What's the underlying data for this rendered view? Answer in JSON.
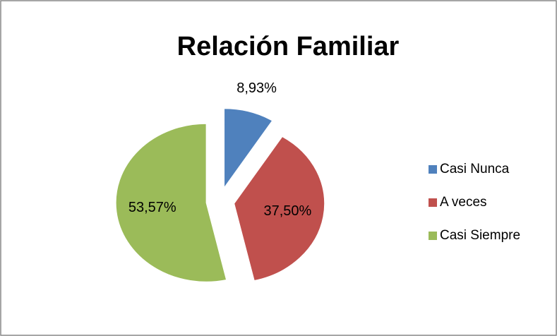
{
  "chart_data": {
    "type": "pie",
    "title": "Relación Familiar",
    "categories": [
      "Casi Nunca",
      "A veces",
      "Casi Siempre"
    ],
    "values": [
      8.93,
      37.5,
      53.57
    ],
    "value_labels": [
      "8,93%",
      "37,50%",
      "53,57%"
    ],
    "colors": [
      "#4f81bd",
      "#c0504d",
      "#9bbb59"
    ],
    "legend": "right"
  }
}
